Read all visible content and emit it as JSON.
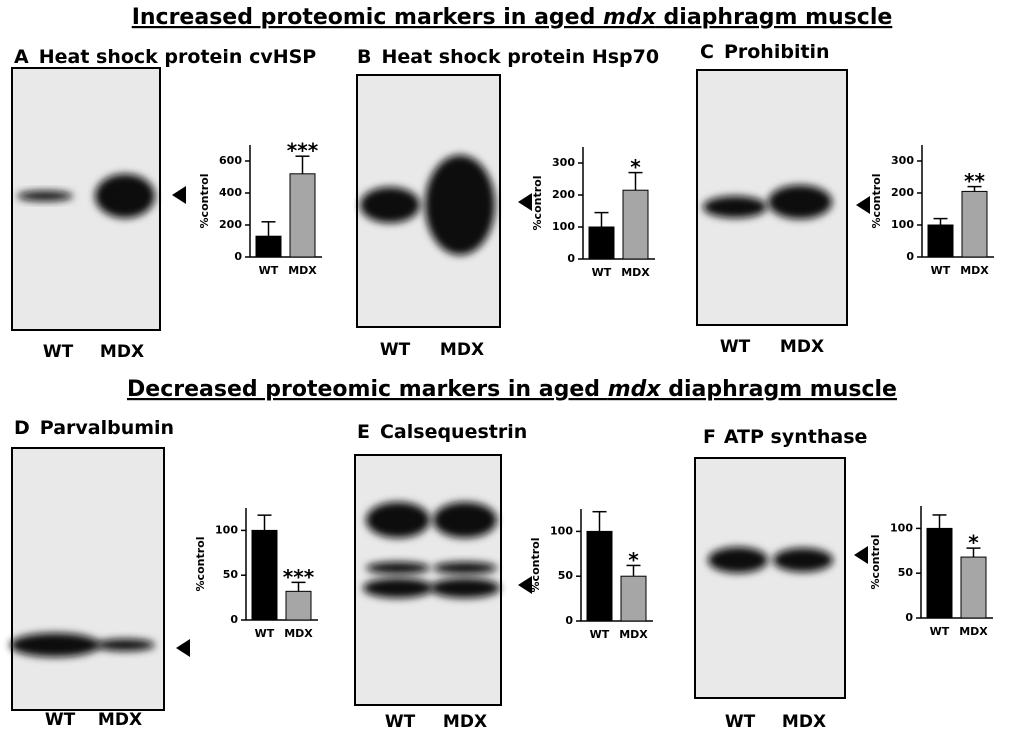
{
  "headings": [
    {
      "before": "Increased proteomic markers in aged ",
      "italic": "mdx",
      "after": " diaphragm muscle"
    },
    {
      "before": "Decreased proteomic markers in aged ",
      "italic": "mdx",
      "after": " diaphragm muscle"
    }
  ],
  "chart_data": [
    {
      "type": "bar",
      "panel": "A",
      "title": "Heat shock protein cvHSP",
      "lanes": [
        "WT",
        "MDX"
      ],
      "ylabel": "%control",
      "categories": [
        "WT",
        "MDX"
      ],
      "values": [
        130,
        520
      ],
      "errors": [
        90,
        110
      ],
      "significance": "***",
      "colors": [
        "#000000",
        "#a6a6a6"
      ],
      "ylim": [
        0,
        700
      ],
      "yticks": [
        0,
        200,
        400,
        600
      ]
    },
    {
      "type": "bar",
      "panel": "B",
      "title": "Heat shock protein Hsp70",
      "lanes": [
        "WT",
        "MDX"
      ],
      "ylabel": "%control",
      "categories": [
        "WT",
        "MDX"
      ],
      "values": [
        100,
        215
      ],
      "errors": [
        45,
        55
      ],
      "significance": "*",
      "colors": [
        "#000000",
        "#a6a6a6"
      ],
      "ylim": [
        0,
        350
      ],
      "yticks": [
        0,
        100,
        200,
        300
      ]
    },
    {
      "type": "bar",
      "panel": "C",
      "title": "Prohibitin",
      "lanes": [
        "WT",
        "MDX"
      ],
      "ylabel": "%control",
      "categories": [
        "WT",
        "MDX"
      ],
      "values": [
        100,
        205
      ],
      "errors": [
        20,
        15
      ],
      "significance": "**",
      "colors": [
        "#000000",
        "#a6a6a6"
      ],
      "ylim": [
        0,
        350
      ],
      "yticks": [
        0,
        100,
        200,
        300
      ]
    },
    {
      "type": "bar",
      "panel": "D",
      "title": "Parvalbumin",
      "lanes": [
        "WT",
        "MDX"
      ],
      "ylabel": "%control",
      "categories": [
        "WT",
        "MDX"
      ],
      "values": [
        100,
        32
      ],
      "errors": [
        17,
        10
      ],
      "significance": "***",
      "colors": [
        "#000000",
        "#a6a6a6"
      ],
      "ylim": [
        0,
        125
      ],
      "yticks": [
        0,
        50,
        100
      ]
    },
    {
      "type": "bar",
      "panel": "E",
      "title": "Calsequestrin",
      "lanes": [
        "WT",
        "MDX"
      ],
      "ylabel": "%control",
      "categories": [
        "WT",
        "MDX"
      ],
      "values": [
        100,
        50
      ],
      "errors": [
        22,
        12
      ],
      "significance": "*",
      "colors": [
        "#000000",
        "#a6a6a6"
      ],
      "ylim": [
        0,
        125
      ],
      "yticks": [
        0,
        50,
        100
      ]
    },
    {
      "type": "bar",
      "panel": "F",
      "title": "ATP synthase",
      "lanes": [
        "WT",
        "MDX"
      ],
      "ylabel": "%control",
      "categories": [
        "WT",
        "MDX"
      ],
      "values": [
        100,
        68
      ],
      "errors": [
        15,
        10
      ],
      "significance": "*",
      "colors": [
        "#000000",
        "#a6a6a6"
      ],
      "ylim": [
        0,
        125
      ],
      "yticks": [
        0,
        50,
        100
      ]
    }
  ]
}
